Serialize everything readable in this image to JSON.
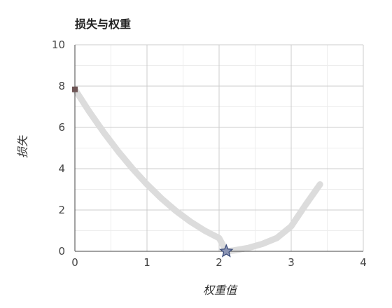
{
  "chart_data": {
    "type": "line",
    "title": "损失与权重",
    "xlabel": "权重值",
    "ylabel": "损失",
    "xlim": [
      0,
      4
    ],
    "ylim": [
      0,
      10
    ],
    "x_ticks": [
      "0",
      "1",
      "2",
      "3",
      "4"
    ],
    "y_ticks": [
      "0",
      "2",
      "4",
      "6",
      "8",
      "10"
    ],
    "grid": true,
    "minor_grid": true,
    "series": [
      {
        "x": [
          0,
          0.2,
          0.4,
          0.6,
          0.8,
          1.0,
          1.2,
          1.4,
          1.6,
          1.8,
          2.0,
          2.1,
          2.2,
          2.4,
          2.6,
          2.8,
          3.0,
          3.2,
          3.4
        ],
        "y": [
          7.84,
          6.76,
          5.76,
          4.84,
          4.0,
          3.24,
          2.56,
          1.96,
          1.44,
          1.0,
          0.64,
          0.0,
          0.04,
          0.16,
          0.36,
          0.64,
          1.21,
          2.25,
          3.24
        ],
        "color": "#dcdcdc"
      }
    ],
    "start_marker": {
      "x": 0,
      "y": 7.84,
      "shape": "square",
      "color": "#6e5555"
    },
    "min_marker": {
      "x": 2.1,
      "y": 0.0,
      "shape": "star",
      "color": "#3a4b7a"
    }
  }
}
